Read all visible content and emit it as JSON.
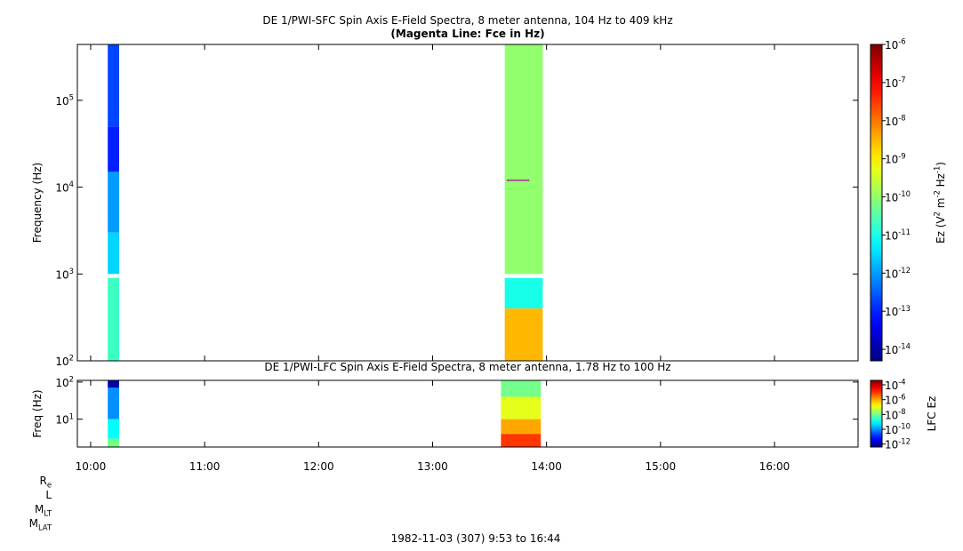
{
  "chart_data": [
    {
      "type": "heatmap",
      "title": "DE 1/PWI-SFC  Spin Axis E-Field Spectra, 8 meter antenna, 104 Hz to 409 kHz",
      "subtitle": "(Magenta Line: Fce in Hz)",
      "ylabel": "Frequency (Hz)",
      "xlim": [
        "9:53",
        "16:44"
      ],
      "ylim": [
        100,
        440000
      ],
      "ylog": true,
      "yticks": [
        {
          "value": 100,
          "label": [
            "10",
            "2"
          ]
        },
        {
          "value": 1000,
          "label": [
            "10",
            "3"
          ]
        },
        {
          "value": 10000,
          "label": [
            "10",
            "4"
          ]
        },
        {
          "value": 100000,
          "label": [
            "10",
            "5"
          ]
        }
      ],
      "cells": [
        {
          "t": [
            "10:09",
            "10:15"
          ],
          "f": [
            50000,
            440000
          ],
          "z": 2e-13
        },
        {
          "t": [
            "10:09",
            "10:15"
          ],
          "f": [
            15000,
            50000
          ],
          "z": 1e-13
        },
        {
          "t": [
            "10:09",
            "10:15"
          ],
          "f": [
            3000,
            15000
          ],
          "z": 1e-12
        },
        {
          "t": [
            "10:09",
            "10:15"
          ],
          "f": [
            1000,
            3000
          ],
          "z": 3e-12
        },
        {
          "t": [
            "10:09",
            "10:15"
          ],
          "f": [
            100,
            900
          ],
          "z": 2e-11
        },
        {
          "t": [
            "13:38",
            "13:58"
          ],
          "f": [
            1000,
            440000
          ],
          "z": 1e-10
        },
        {
          "t": [
            "13:38",
            "13:58"
          ],
          "f": [
            400,
            900
          ],
          "z": 1e-11
        },
        {
          "t": [
            "13:38",
            "13:58"
          ],
          "f": [
            100,
            400
          ],
          "z": 3e-09
        }
      ],
      "line": {
        "color": "#b0509a",
        "x": [
          "13:39",
          "13:51"
        ],
        "values": [
          12000,
          12000
        ]
      },
      "colorbar": {
        "label": [
          "Ez (V",
          "2",
          " m",
          "-2",
          " Hz",
          "-1",
          ")"
        ],
        "lim": [
          5e-15,
          1e-06
        ],
        "log": true,
        "ticks": [
          {
            "value": 1e-14,
            "label": [
              "10",
              "-14"
            ]
          },
          {
            "value": 1e-13,
            "label": [
              "10",
              "-13"
            ]
          },
          {
            "value": 1e-12,
            "label": [
              "10",
              "-12"
            ]
          },
          {
            "value": 1e-11,
            "label": [
              "10",
              "-11"
            ]
          },
          {
            "value": 1e-10,
            "label": [
              "10",
              "-10"
            ]
          },
          {
            "value": 1e-09,
            "label": [
              "10",
              "-9"
            ]
          },
          {
            "value": 1e-08,
            "label": [
              "10",
              "-8"
            ]
          },
          {
            "value": 1e-07,
            "label": [
              "10",
              "-7"
            ]
          },
          {
            "value": 1e-06,
            "label": [
              "10",
              "-6"
            ]
          }
        ]
      }
    },
    {
      "type": "heatmap",
      "title": "DE 1/PWI-LFC  Spin Axis E-Field Spectra, 8 meter antenna, 1.78 Hz to 100 Hz",
      "ylabel": "Freq (Hz)",
      "xlim": [
        "9:53",
        "16:44"
      ],
      "xticks": [
        "10:00",
        "11:00",
        "12:00",
        "13:00",
        "14:00",
        "15:00",
        "16:00"
      ],
      "ylim": [
        1.78,
        111
      ],
      "ylog": true,
      "yticks": [
        {
          "value": 10,
          "label": [
            "10",
            "1"
          ]
        },
        {
          "value": 100,
          "label": [
            "10",
            "2"
          ]
        }
      ],
      "cells": [
        {
          "t": [
            "10:09",
            "10:15"
          ],
          "f": [
            70,
            111
          ],
          "z": 1e-12
        },
        {
          "t": [
            "10:09",
            "10:15"
          ],
          "f": [
            10,
            70
          ],
          "z": 1e-10
        },
        {
          "t": [
            "10:09",
            "10:15"
          ],
          "f": [
            3,
            10
          ],
          "z": 1e-09
        },
        {
          "t": [
            "10:09",
            "10:15"
          ],
          "f": [
            1.78,
            3
          ],
          "z": 1e-08
        },
        {
          "t": [
            "13:36",
            "13:57"
          ],
          "f": [
            40,
            111
          ],
          "z": 1e-08
        },
        {
          "t": [
            "13:36",
            "13:57"
          ],
          "f": [
            10,
            40
          ],
          "z": 1e-07
        },
        {
          "t": [
            "13:36",
            "13:57"
          ],
          "f": [
            4,
            10
          ],
          "z": 1e-06
        },
        {
          "t": [
            "13:36",
            "13:57"
          ],
          "f": [
            1.78,
            4
          ],
          "z": 1e-05
        }
      ],
      "colorbar": {
        "label": [
          "LFC Ez"
        ],
        "lim": [
          4e-13,
          0.0004
        ],
        "log": true,
        "ticks": [
          {
            "value": 1e-12,
            "label": [
              "10",
              "-12"
            ]
          },
          {
            "value": 1e-10,
            "label": [
              "10",
              "-10"
            ]
          },
          {
            "value": 1e-08,
            "label": [
              "10",
              "-8"
            ]
          },
          {
            "value": 1e-06,
            "label": [
              "10",
              "-6"
            ]
          },
          {
            "value": 0.0001,
            "label": [
              "10",
              "-4"
            ]
          }
        ]
      },
      "ephemeris_labels": [
        [
          "R",
          "e"
        ],
        [
          "L"
        ],
        [
          "M",
          "LT"
        ],
        [
          "M",
          "LAT"
        ]
      ],
      "xlabel": "1982-11-03 (307) 9:53 to 16:44"
    }
  ]
}
